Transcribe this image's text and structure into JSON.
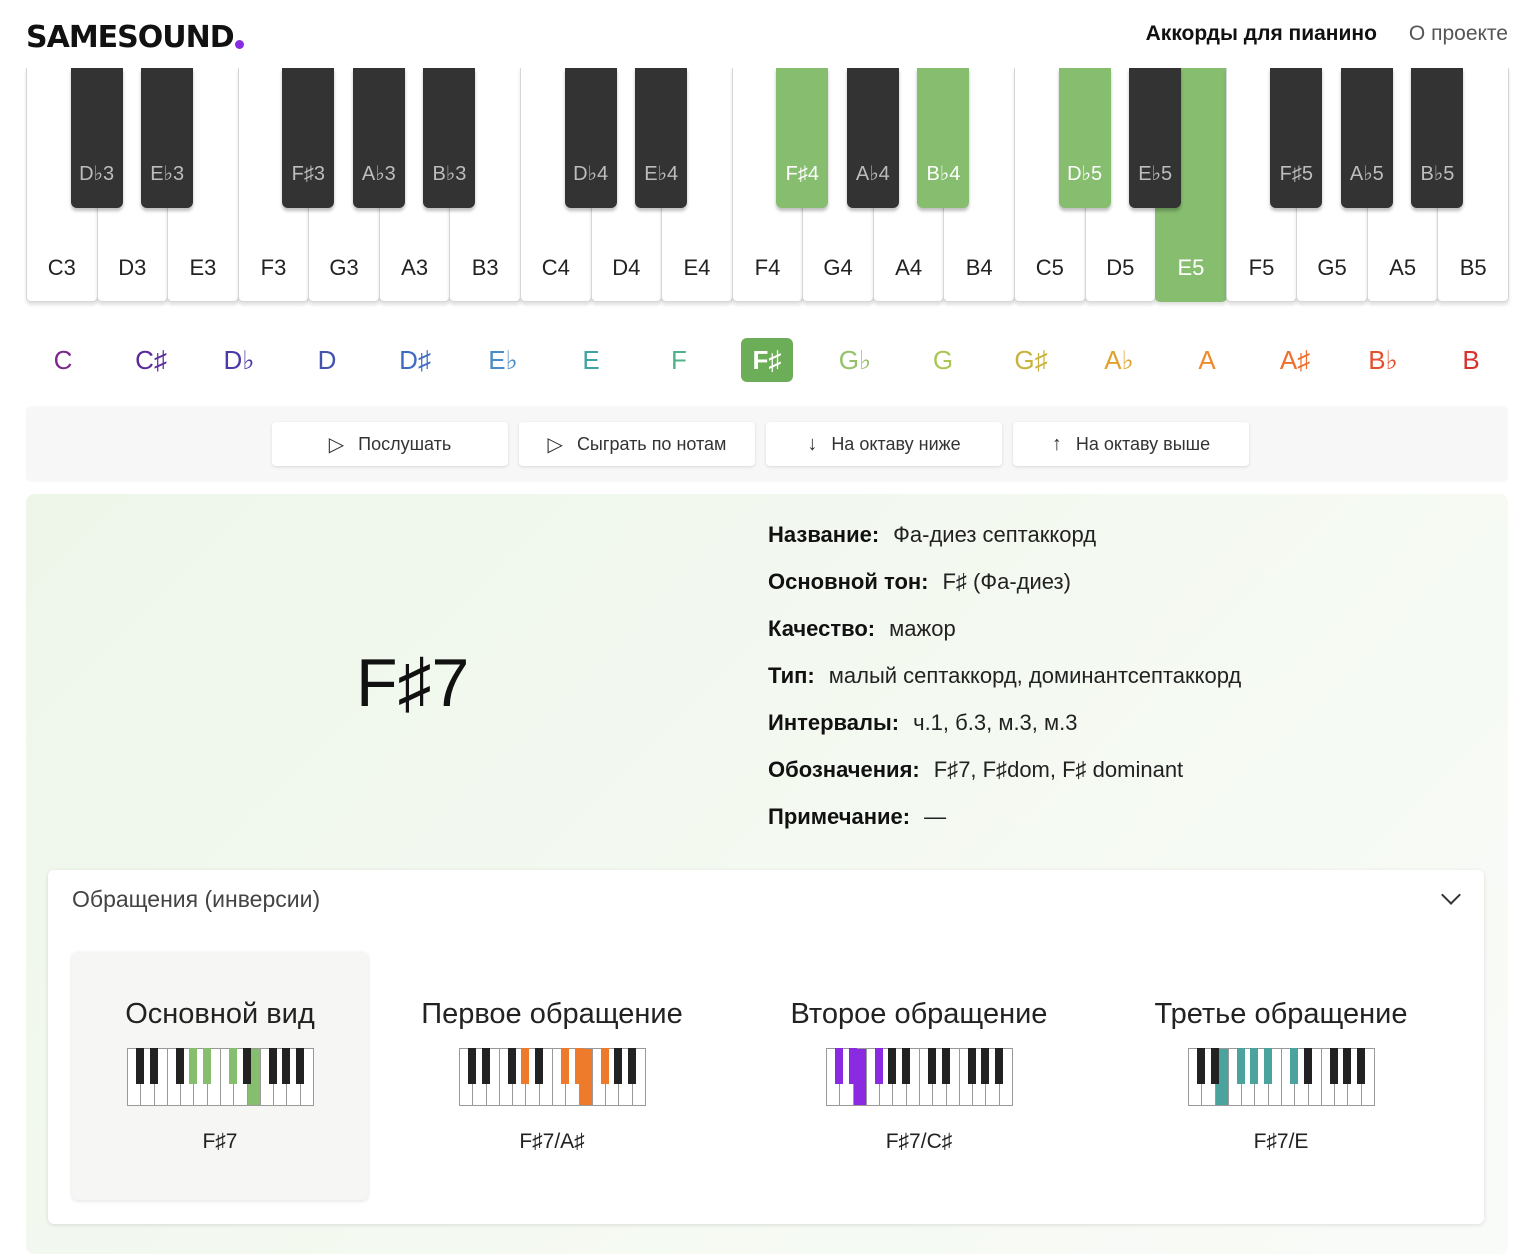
{
  "header": {
    "logo": "SAMESOUND",
    "nav": [
      {
        "label": "Аккорды для пианино",
        "active": true
      },
      {
        "label": "О проекте",
        "active": false
      }
    ]
  },
  "piano": {
    "active_color": "#86bd6f",
    "white_keys": [
      {
        "label": "C3",
        "active": false
      },
      {
        "label": "D3",
        "active": false
      },
      {
        "label": "E3",
        "active": false
      },
      {
        "label": "F3",
        "active": false
      },
      {
        "label": "G3",
        "active": false
      },
      {
        "label": "A3",
        "active": false
      },
      {
        "label": "B3",
        "active": false
      },
      {
        "label": "C4",
        "active": false
      },
      {
        "label": "D4",
        "active": false
      },
      {
        "label": "E4",
        "active": false
      },
      {
        "label": "F4",
        "active": false
      },
      {
        "label": "G4",
        "active": false
      },
      {
        "label": "A4",
        "active": false
      },
      {
        "label": "B4",
        "active": false
      },
      {
        "label": "C5",
        "active": false
      },
      {
        "label": "D5",
        "active": false
      },
      {
        "label": "E5",
        "active": true
      },
      {
        "label": "F5",
        "active": false
      },
      {
        "label": "G5",
        "active": false
      },
      {
        "label": "A5",
        "active": false
      },
      {
        "label": "B5",
        "active": false
      }
    ],
    "black_keys": [
      {
        "label": "D♭3",
        "after": 0,
        "active": false
      },
      {
        "label": "E♭3",
        "after": 1,
        "active": false
      },
      {
        "label": "F♯3",
        "after": 3,
        "active": false
      },
      {
        "label": "A♭3",
        "after": 4,
        "active": false
      },
      {
        "label": "B♭3",
        "after": 5,
        "active": false
      },
      {
        "label": "D♭4",
        "after": 7,
        "active": false
      },
      {
        "label": "E♭4",
        "after": 8,
        "active": false
      },
      {
        "label": "F♯4",
        "after": 10,
        "active": true
      },
      {
        "label": "A♭4",
        "after": 11,
        "active": false
      },
      {
        "label": "B♭4",
        "after": 12,
        "active": true
      },
      {
        "label": "D♭5",
        "after": 14,
        "active": true
      },
      {
        "label": "E♭5",
        "after": 15,
        "active": false
      },
      {
        "label": "F♯5",
        "after": 17,
        "active": false
      },
      {
        "label": "A♭5",
        "after": 18,
        "active": false
      },
      {
        "label": "B♭5",
        "after": 19,
        "active": false
      }
    ]
  },
  "notes": [
    {
      "label": "C",
      "color": "#7b2a8c",
      "selected": false
    },
    {
      "label": "C♯",
      "color": "#5b2a9a",
      "selected": false
    },
    {
      "label": "D♭",
      "color": "#4a3aa8",
      "selected": false
    },
    {
      "label": "D",
      "color": "#4453b0",
      "selected": false
    },
    {
      "label": "D♯",
      "color": "#3f6cc0",
      "selected": false
    },
    {
      "label": "E♭",
      "color": "#4a8cc7",
      "selected": false
    },
    {
      "label": "E",
      "color": "#3ea3a3",
      "selected": false
    },
    {
      "label": "F",
      "color": "#4db38a",
      "selected": false
    },
    {
      "label": "F♯",
      "color": "#6cae57",
      "selected": true
    },
    {
      "label": "G♭",
      "color": "#93c26a",
      "selected": false
    },
    {
      "label": "G",
      "color": "#a9c656",
      "selected": false
    },
    {
      "label": "G♯",
      "color": "#c9b23a",
      "selected": false
    },
    {
      "label": "A♭",
      "color": "#e0a22f",
      "selected": false
    },
    {
      "label": "A",
      "color": "#ee8a2b",
      "selected": false
    },
    {
      "label": "A♯",
      "color": "#ee6e2b",
      "selected": false
    },
    {
      "label": "B♭",
      "color": "#e4502e",
      "selected": false
    },
    {
      "label": "B",
      "color": "#d9302c",
      "selected": false
    }
  ],
  "controls": [
    {
      "icon": "play-icon",
      "glyph": "▷",
      "label": "Послушать"
    },
    {
      "icon": "play-icon",
      "glyph": "▷",
      "label": "Сыграть по нотам"
    },
    {
      "icon": "arrow-down-icon",
      "glyph": "↓",
      "label": "На октаву ниже"
    },
    {
      "icon": "arrow-up-icon",
      "glyph": "↑",
      "label": "На октаву выше"
    }
  ],
  "chord": {
    "symbol": "F♯7",
    "facts": [
      {
        "key": "Название:",
        "value": "Фа-диез септаккорд"
      },
      {
        "key": "Основной тон:",
        "value": "F♯ (Фа-диез)"
      },
      {
        "key": "Качество:",
        "value": "мажор"
      },
      {
        "key": "Тип:",
        "value": "малый септаккорд, доминантсептаккорд"
      },
      {
        "key": "Интервалы:",
        "value": "ч.1, б.3, м.3, м.3"
      },
      {
        "key": "Обозначения:",
        "value": "F♯7, F♯dom, F♯ dominant"
      },
      {
        "key": "Примечание:",
        "value": "—"
      }
    ]
  },
  "inversions": {
    "title": "Обращения (инверсии)",
    "items": [
      {
        "name": "Основной вид",
        "label": "F♯7",
        "color": "#86bd6f",
        "selected": true,
        "whites": [
          9
        ],
        "blacks": [
          3,
          4,
          5
        ]
      },
      {
        "name": "Первое обращение",
        "label": "F♯7/A♯",
        "color": "#ee7a2b",
        "selected": false,
        "whites": [
          9
        ],
        "blacks": [
          3,
          5,
          6,
          7
        ]
      },
      {
        "name": "Второе обращение",
        "label": "F♯7/C♯",
        "color": "#8a2be2",
        "selected": false,
        "whites": [
          2
        ],
        "blacks": [
          0,
          1,
          2
        ]
      },
      {
        "name": "Третье обращение",
        "label": "F♯7/E",
        "color": "#4aa39c",
        "selected": false,
        "whites": [
          2
        ],
        "blacks": [
          2,
          3,
          4,
          5
        ]
      }
    ]
  }
}
